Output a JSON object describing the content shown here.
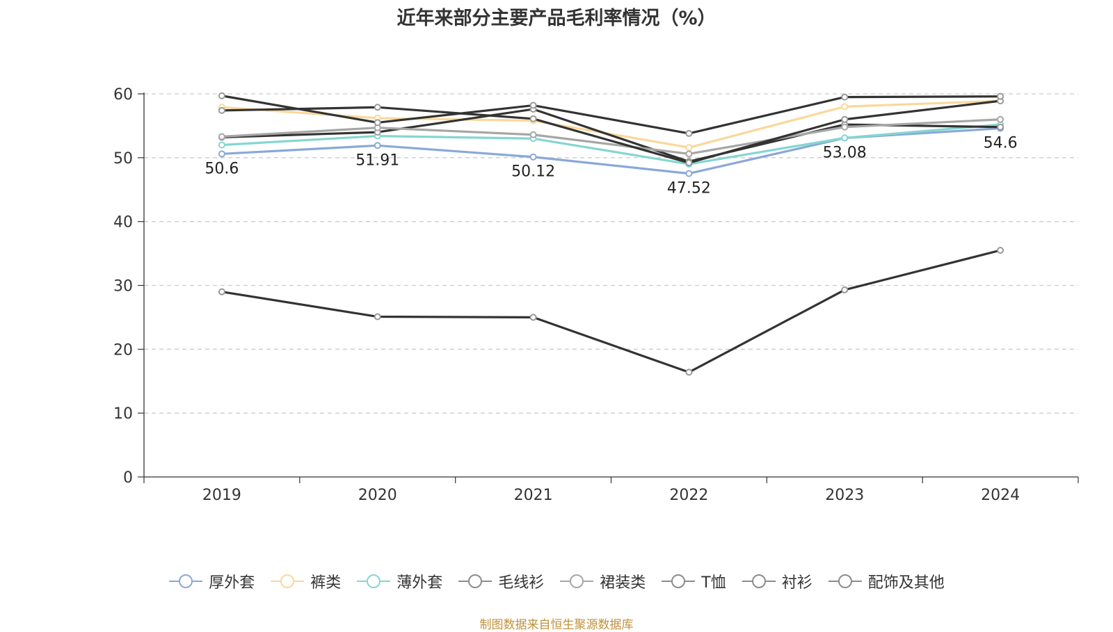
{
  "chart_data": {
    "type": "line",
    "title": "近年来部分主要产品毛利率情况（%）",
    "categories": [
      "2019",
      "2020",
      "2021",
      "2022",
      "2023",
      "2024"
    ],
    "ylim": [
      0,
      60
    ],
    "yticks": [
      0,
      10,
      20,
      30,
      40,
      50,
      60
    ],
    "grid": true,
    "legend_position": "bottom",
    "series": [
      {
        "name": "厚外套",
        "color": "#8aa8d8",
        "values": [
          50.6,
          51.91,
          50.12,
          47.52,
          53.08,
          54.6
        ],
        "labels": [
          "50.6",
          "51.91",
          "50.12",
          "47.52",
          "53.08",
          "54.6"
        ]
      },
      {
        "name": "裤类",
        "color": "#fad89a",
        "values": [
          57.9,
          56.2,
          55.8,
          51.6,
          58.0,
          58.9
        ]
      },
      {
        "name": "薄外套",
        "color": "#84d6d2",
        "values": [
          52.0,
          53.4,
          53.0,
          49.0,
          53.1,
          55.2
        ]
      },
      {
        "name": "毛线衫",
        "color": "#333333",
        "values": [
          53.2,
          54.0,
          57.6,
          49.4,
          55.2,
          54.8
        ]
      },
      {
        "name": "裙装类",
        "color": "#a6a6a6",
        "values": [
          53.3,
          54.7,
          53.6,
          50.6,
          54.8,
          56.0
        ]
      },
      {
        "name": "T恤",
        "color": "#333333",
        "values": [
          57.4,
          57.9,
          56.1,
          49.2,
          56.0,
          58.9
        ]
      },
      {
        "name": "衬衫",
        "color": "#333333",
        "values": [
          59.7,
          55.5,
          58.2,
          53.8,
          59.5,
          59.6
        ]
      },
      {
        "name": "配饰及其他",
        "color": "#333333",
        "values": [
          29.0,
          25.1,
          25.0,
          16.4,
          29.3,
          35.5
        ]
      }
    ]
  },
  "source": "制图数据来自恒生聚源数据库"
}
